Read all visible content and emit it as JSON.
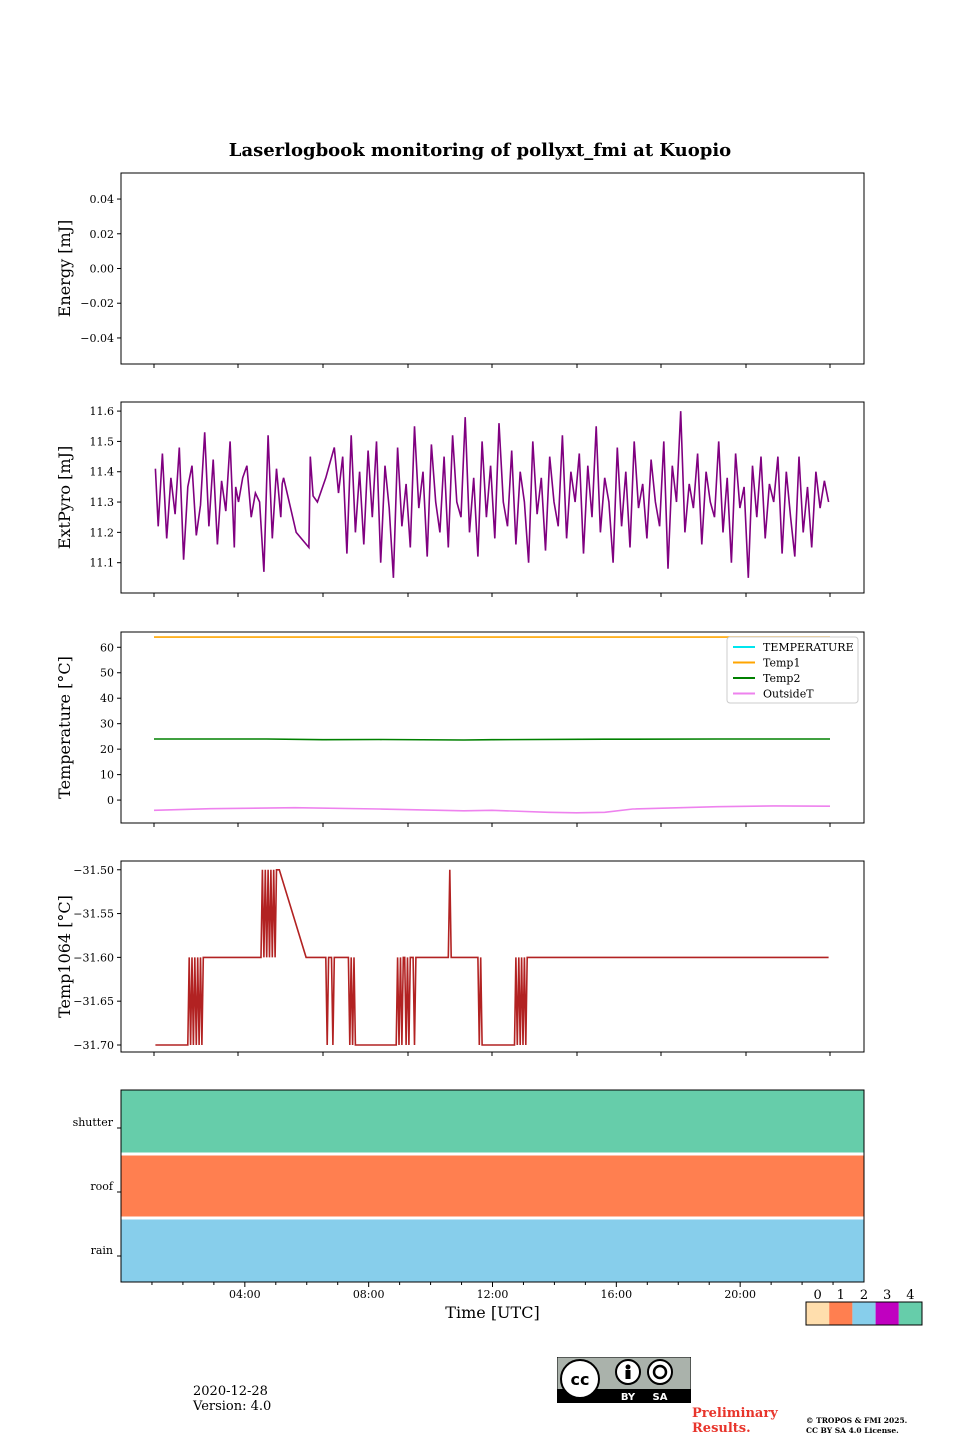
{
  "title": "Laserlogbook monitoring of pollyxt_fmi at Kuopio",
  "footer": {
    "date": "2020-12-28",
    "version": "Version: 4.0",
    "preliminary_line1": "Preliminary",
    "preliminary_line2": "Results.",
    "copyright_line1": "© TROPOS & FMI 2025.",
    "copyright_line2": "CC BY SA 4.0 License.",
    "cc_by": "BY",
    "cc_sa": "SA",
    "cc_logo": "cc"
  },
  "colors": {
    "extpyro": "#800080",
    "temperature": "#00e5ee",
    "temp1": "#ffa500",
    "temp2": "#008000",
    "outsidet": "#ee82ee",
    "temp1064": "#b22222",
    "status0": "#ffdead",
    "status1": "#ff7f50",
    "status2": "#87ceeb",
    "status3": "#c000c0",
    "status4": "#66cdaa"
  },
  "chart_data": [
    {
      "type": "line",
      "name": "energy",
      "ylabel": "Energy [mJ]",
      "ylim": [
        -0.055,
        0.055
      ],
      "yticks": [
        0.04,
        0.02,
        0.0,
        -0.02,
        -0.04
      ],
      "ytick_labels": [
        "0.04",
        "0.02",
        "0.00",
        "−0.02",
        "−0.04"
      ],
      "xlim": [
        0,
        24
      ],
      "series": []
    },
    {
      "type": "line",
      "name": "extpyro",
      "ylabel": "ExtPyro [mJ]",
      "ylim": [
        11.0,
        11.63
      ],
      "yticks": [
        11.6,
        11.5,
        11.4,
        11.3,
        11.2,
        11.1
      ],
      "ytick_labels": [
        "11.6",
        "11.5",
        "11.4",
        "11.3",
        "11.2",
        "11.1"
      ],
      "xlim": [
        0,
        24
      ],
      "series": [
        {
          "name": "ExtPyro",
          "x": [
            0.05,
            0.15,
            0.3,
            0.45,
            0.6,
            0.75,
            0.9,
            1.05,
            1.2,
            1.35,
            1.5,
            1.65,
            1.8,
            1.95,
            2.1,
            2.25,
            2.4,
            2.55,
            2.7,
            2.85,
            2.9,
            3.0,
            3.15,
            3.3,
            3.45,
            3.6,
            3.75,
            3.9,
            4.05,
            4.2,
            4.35,
            4.5,
            4.55,
            4.6,
            5.05,
            5.5,
            5.55,
            5.65,
            5.8,
            5.95,
            6.1,
            6.25,
            6.4,
            6.55,
            6.7,
            6.85,
            7.0,
            7.15,
            7.3,
            7.45,
            7.6,
            7.75,
            7.9,
            8.05,
            8.2,
            8.35,
            8.5,
            8.65,
            8.8,
            8.95,
            9.1,
            9.25,
            9.4,
            9.55,
            9.7,
            9.85,
            10.0,
            10.15,
            10.3,
            10.45,
            10.6,
            10.75,
            10.9,
            11.05,
            11.2,
            11.35,
            11.5,
            11.65,
            11.8,
            11.95,
            12.1,
            12.25,
            12.4,
            12.55,
            12.7,
            12.85,
            13.0,
            13.15,
            13.3,
            13.45,
            13.6,
            13.75,
            13.9,
            14.05,
            14.2,
            14.35,
            14.5,
            14.65,
            14.8,
            14.95,
            15.1,
            15.25,
            15.4,
            15.55,
            15.7,
            15.85,
            16.0,
            16.15,
            16.3,
            16.45,
            16.6,
            16.75,
            16.9,
            17.05,
            17.2,
            17.35,
            17.5,
            17.65,
            17.8,
            17.95,
            18.1,
            18.25,
            18.4,
            18.55,
            18.7,
            18.85,
            19.0,
            19.15,
            19.3,
            19.45,
            19.6,
            19.75,
            19.9,
            20.05,
            20.2,
            20.35,
            20.5,
            20.65,
            20.8,
            20.95,
            21.1,
            21.25,
            21.4,
            21.55,
            21.7,
            21.85,
            22.0,
            22.15,
            22.3,
            22.45,
            22.6,
            22.75,
            22.9,
            23.05,
            23.2,
            23.35,
            23.5,
            23.65,
            23.8,
            23.95
          ],
          "values": [
            11.41,
            11.22,
            11.46,
            11.18,
            11.38,
            11.26,
            11.48,
            11.11,
            11.35,
            11.42,
            11.19,
            11.29,
            11.53,
            11.22,
            11.44,
            11.16,
            11.37,
            11.27,
            11.5,
            11.15,
            11.35,
            11.3,
            11.38,
            11.42,
            11.25,
            11.33,
            11.3,
            11.07,
            11.52,
            11.18,
            11.41,
            11.25,
            11.36,
            11.38,
            11.2,
            11.15,
            11.45,
            11.32,
            11.3,
            11.34,
            11.38,
            11.43,
            11.48,
            11.33,
            11.45,
            11.13,
            11.52,
            11.2,
            11.4,
            11.16,
            11.47,
            11.25,
            11.5,
            11.1,
            11.42,
            11.28,
            11.05,
            11.48,
            11.22,
            11.36,
            11.15,
            11.55,
            11.28,
            11.4,
            11.12,
            11.49,
            11.3,
            11.2,
            11.45,
            11.15,
            11.52,
            11.3,
            11.25,
            11.58,
            11.2,
            11.38,
            11.12,
            11.5,
            11.25,
            11.42,
            11.18,
            11.56,
            11.3,
            11.22,
            11.47,
            11.16,
            11.4,
            11.3,
            11.1,
            11.5,
            11.26,
            11.38,
            11.14,
            11.45,
            11.3,
            11.22,
            11.52,
            11.18,
            11.4,
            11.3,
            11.46,
            11.13,
            11.42,
            11.25,
            11.55,
            11.2,
            11.38,
            11.3,
            11.1,
            11.48,
            11.22,
            11.4,
            11.15,
            11.5,
            11.28,
            11.36,
            11.18,
            11.44,
            11.3,
            11.22,
            11.5,
            11.08,
            11.42,
            11.3,
            11.6,
            11.2,
            11.36,
            11.28,
            11.46,
            11.16,
            11.4,
            11.3,
            11.25,
            11.5,
            11.2,
            11.38,
            11.1,
            11.46,
            11.28,
            11.35,
            11.05,
            11.42,
            11.25,
            11.45,
            11.18,
            11.36,
            11.3,
            11.45,
            11.13,
            11.4,
            11.25,
            11.12,
            11.45,
            11.2,
            11.35,
            11.15,
            11.4,
            11.28,
            11.37,
            11.3
          ]
        }
      ]
    },
    {
      "type": "line",
      "name": "temperature",
      "ylabel": "Temperature [°C]",
      "ylim": [
        -9,
        66
      ],
      "yticks": [
        60,
        50,
        40,
        30,
        20,
        10,
        0
      ],
      "ytick_labels": [
        "60",
        "50",
        "40",
        "30",
        "20",
        "10",
        "0"
      ],
      "xlim": [
        0,
        24
      ],
      "legend": [
        "TEMPERATURE",
        "Temp1",
        "Temp2",
        "OutsideT"
      ],
      "series": [
        {
          "name": "TEMPERATURE",
          "x": [],
          "values": []
        },
        {
          "name": "Temp1",
          "x": [
            0,
            24
          ],
          "values": [
            64,
            64
          ]
        },
        {
          "name": "Temp2",
          "x": [
            0,
            4,
            6,
            8,
            11,
            12,
            16,
            20,
            24
          ],
          "values": [
            24,
            24,
            23.7,
            23.8,
            23.6,
            23.7,
            23.9,
            24.0,
            24.0
          ]
        },
        {
          "name": "OutsideT",
          "x": [
            0,
            2,
            5,
            8,
            11,
            12,
            14,
            15,
            16,
            17,
            20,
            22,
            24
          ],
          "values": [
            -4.0,
            -3.4,
            -3.0,
            -3.5,
            -4.2,
            -4.0,
            -4.8,
            -5.0,
            -4.8,
            -3.5,
            -2.6,
            -2.3,
            -2.4
          ]
        }
      ]
    },
    {
      "type": "line",
      "name": "temp1064",
      "ylabel": "Temp1064 [°C]",
      "ylim": [
        -31.708,
        -31.49
      ],
      "yticks": [
        -31.5,
        -31.55,
        -31.6,
        -31.65,
        -31.7
      ],
      "ytick_labels": [
        "−31.50",
        "−31.55",
        "−31.60",
        "−31.65",
        "−31.70"
      ],
      "xlim": [
        0,
        24
      ],
      "series": [
        {
          "name": "Temp1064",
          "x": [
            0.05,
            1.2,
            1.25,
            1.3,
            1.35,
            1.4,
            1.45,
            1.5,
            1.55,
            1.6,
            1.65,
            1.7,
            1.75,
            3.8,
            3.85,
            3.9,
            3.95,
            4.0,
            4.05,
            4.1,
            4.15,
            4.2,
            4.25,
            4.3,
            4.35,
            4.45,
            5.4,
            6.1,
            6.15,
            6.2,
            6.3,
            6.35,
            6.4,
            6.45,
            6.9,
            6.95,
            7.0,
            7.05,
            7.1,
            7.15,
            8.6,
            8.65,
            8.7,
            8.75,
            8.8,
            8.85,
            8.9,
            8.95,
            9.0,
            9.05,
            9.1,
            9.2,
            9.25,
            9.3,
            10.45,
            10.5,
            10.55,
            11.5,
            11.55,
            11.6,
            11.65,
            12.8,
            12.85,
            12.9,
            12.95,
            13.0,
            13.05,
            13.1,
            13.15,
            13.2,
            13.25,
            23.95
          ],
          "values": [
            -31.7,
            -31.7,
            -31.6,
            -31.7,
            -31.6,
            -31.7,
            -31.6,
            -31.7,
            -31.6,
            -31.7,
            -31.6,
            -31.7,
            -31.6,
            -31.6,
            -31.5,
            -31.6,
            -31.5,
            -31.6,
            -31.5,
            -31.6,
            -31.5,
            -31.6,
            -31.5,
            -31.6,
            -31.5,
            -31.5,
            -31.6,
            -31.6,
            -31.7,
            -31.6,
            -31.6,
            -31.7,
            -31.6,
            -31.6,
            -31.6,
            -31.7,
            -31.6,
            -31.7,
            -31.6,
            -31.7,
            -31.7,
            -31.6,
            -31.7,
            -31.6,
            -31.7,
            -31.6,
            -31.6,
            -31.7,
            -31.6,
            -31.7,
            -31.6,
            -31.6,
            -31.7,
            -31.6,
            -31.6,
            -31.5,
            -31.6,
            -31.6,
            -31.7,
            -31.6,
            -31.7,
            -31.7,
            -31.6,
            -31.7,
            -31.6,
            -31.7,
            -31.6,
            -31.7,
            -31.6,
            -31.7,
            -31.6,
            -31.6
          ]
        }
      ]
    },
    {
      "type": "heatmap",
      "name": "status",
      "rows": [
        "shutter",
        "roof",
        "rain"
      ],
      "row_status": [
        4,
        1,
        2
      ],
      "xlim": [
        0,
        24
      ],
      "xticks": [
        4,
        8,
        12,
        16,
        20
      ],
      "xtick_labels": [
        "04:00",
        "08:00",
        "12:00",
        "16:00",
        "20:00"
      ],
      "xlabel": "Time [UTC]",
      "colorbar": {
        "labels": [
          "0",
          "1",
          "2",
          "3",
          "4"
        ]
      }
    }
  ]
}
